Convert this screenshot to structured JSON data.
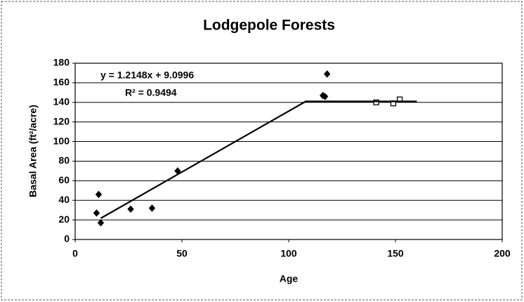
{
  "chart_data": {
    "type": "scatter",
    "title": "Lodgepole Forests",
    "xlabel": "Age",
    "ylabel": "Basal Area (ft²/acre)",
    "xlim": [
      0,
      200
    ],
    "ylim": [
      0,
      180
    ],
    "xticks": [
      0,
      50,
      100,
      150,
      200
    ],
    "yticks": [
      0,
      20,
      40,
      60,
      80,
      100,
      120,
      140,
      160,
      180
    ],
    "grid": true,
    "series": [
      {
        "color": "#000000",
        "marker": "diamond",
        "filled": true,
        "line": false,
        "x": [
          10,
          11,
          12,
          26,
          36,
          48,
          116,
          117,
          118
        ],
        "values": [
          27,
          46,
          17,
          31,
          32,
          70,
          147,
          146,
          169
        ]
      },
      {
        "color": "#000000",
        "marker": "square",
        "filled": false,
        "line": false,
        "x": [
          141,
          149,
          152
        ],
        "values": [
          140,
          139,
          143
        ]
      },
      {
        "color": "#000000",
        "marker": "none",
        "line": true,
        "x": [
          12,
          108,
          160
        ],
        "values": [
          21.7,
          141,
          141
        ]
      }
    ],
    "annotations": [
      "y = 1.2148x + 9.0996",
      "R² = 0.9494"
    ]
  }
}
